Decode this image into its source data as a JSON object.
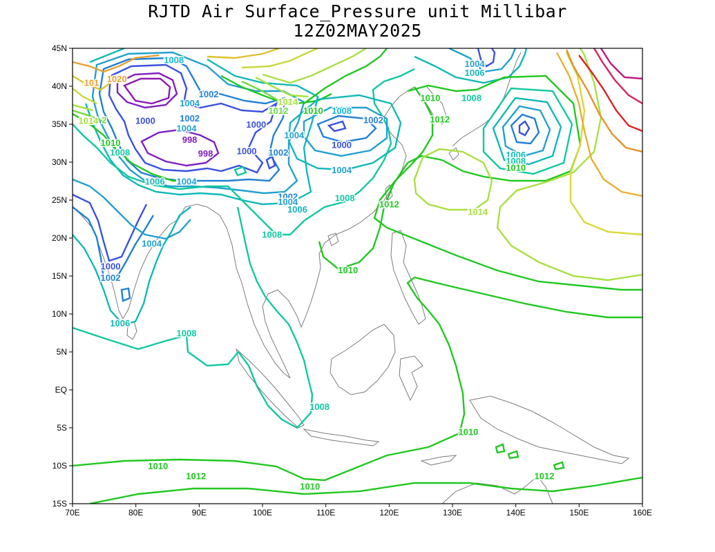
{
  "title": {
    "line1": "RJTD Air Surface_Pressure unit Millibar",
    "line2": "12Z02MAY2025"
  },
  "axes": {
    "lat_ticks": [
      "45N",
      "40N",
      "35N",
      "30N",
      "25N",
      "20N",
      "15N",
      "10N",
      "5N",
      "EQ",
      "5S",
      "10S",
      "15S"
    ],
    "lon_ticks": [
      "70E",
      "80E",
      "90E",
      "100E",
      "110E",
      "120E",
      "130E",
      "140E",
      "150E",
      "160E"
    ]
  },
  "map_data": {
    "type": "contour-map",
    "variable": "Air Surface Pressure",
    "unit": "Millibar",
    "lon_range": [
      70,
      160
    ],
    "lat_range": [
      -15,
      45
    ],
    "contour_labels": [
      {
        "value": "1008",
        "lon": 86.0,
        "lat": 43.5,
        "color": "#10b8d8"
      },
      {
        "value": "1020",
        "lon": 77.0,
        "lat": 41.0,
        "color": "#e8a030"
      },
      {
        "value": "101",
        "lon": 73.0,
        "lat": 40.5,
        "color": "#e8a030"
      },
      {
        "value": "1014",
        "lon": 72.5,
        "lat": 35.5,
        "color": "#a8e040"
      },
      {
        "value": "2",
        "lon": 75.0,
        "lat": 35.6,
        "color": "#70d840"
      },
      {
        "value": "1010",
        "lon": 76.0,
        "lat": 32.6,
        "color": "#20c820"
      },
      {
        "value": "1008",
        "lon": 77.5,
        "lat": 31.3,
        "color": "#10c8a0"
      },
      {
        "value": "1000",
        "lon": 81.5,
        "lat": 35.5,
        "color": "#3850e0"
      },
      {
        "value": "1004",
        "lon": 88.5,
        "lat": 37.8,
        "color": "#20a0d0"
      },
      {
        "value": "1002",
        "lon": 91.5,
        "lat": 39.0,
        "color": "#2080d8"
      },
      {
        "value": "1002",
        "lon": 88.5,
        "lat": 35.8,
        "color": "#2080d8"
      },
      {
        "value": "1004",
        "lon": 88.0,
        "lat": 34.5,
        "color": "#20a0d0"
      },
      {
        "value": "1000",
        "lon": 99.0,
        "lat": 35.0,
        "color": "#3850e0"
      },
      {
        "value": "998",
        "lon": 88.5,
        "lat": 33.0,
        "color": "#8020c0"
      },
      {
        "value": "998",
        "lon": 91.0,
        "lat": 31.2,
        "color": "#8020c0"
      },
      {
        "value": "1000",
        "lon": 97.5,
        "lat": 31.5,
        "color": "#3850e0"
      },
      {
        "value": "1002",
        "lon": 102.5,
        "lat": 31.3,
        "color": "#2080d8"
      },
      {
        "value": "1004",
        "lon": 105.0,
        "lat": 33.6,
        "color": "#20a0d0"
      },
      {
        "value": "1012",
        "lon": 102.5,
        "lat": 36.8,
        "color": "#70d840"
      },
      {
        "value": "1014",
        "lon": 104.0,
        "lat": 38.0,
        "color": "#a8e040"
      },
      {
        "value": "1010",
        "lon": 108.0,
        "lat": 36.8,
        "color": "#20c820"
      },
      {
        "value": "1008",
        "lon": 112.5,
        "lat": 36.8,
        "color": "#10b8d8"
      },
      {
        "value": "1002",
        "lon": 117.5,
        "lat": 35.6,
        "color": "#2080d8"
      },
      {
        "value": "1000",
        "lon": 112.5,
        "lat": 32.3,
        "color": "#3850e0"
      },
      {
        "value": "1004",
        "lon": 112.5,
        "lat": 29.0,
        "color": "#20a0d0"
      },
      {
        "value": "1006",
        "lon": 83.0,
        "lat": 27.5,
        "color": "#10b8b8"
      },
      {
        "value": "1004",
        "lon": 88.0,
        "lat": 27.5,
        "color": "#20a0d0"
      },
      {
        "value": "1002",
        "lon": 104.0,
        "lat": 25.5,
        "color": "#2080d8"
      },
      {
        "value": "1004",
        "lon": 104.0,
        "lat": 24.8,
        "color": "#20a0d0"
      },
      {
        "value": "1006",
        "lon": 105.5,
        "lat": 23.8,
        "color": "#10b8b8"
      },
      {
        "value": "1008",
        "lon": 113.0,
        "lat": 25.3,
        "color": "#10c8a0"
      },
      {
        "value": "1012",
        "lon": 120.0,
        "lat": 24.5,
        "color": "#20c820"
      },
      {
        "value": "1008",
        "lon": 101.5,
        "lat": 20.5,
        "color": "#10c8a0"
      },
      {
        "value": "1010",
        "lon": 113.5,
        "lat": 15.8,
        "color": "#20c820"
      },
      {
        "value": "1004",
        "lon": 82.5,
        "lat": 19.3,
        "color": "#20a0d0"
      },
      {
        "value": "1000",
        "lon": 76.0,
        "lat": 16.3,
        "color": "#3850e0"
      },
      {
        "value": "1002",
        "lon": 76.0,
        "lat": 14.8,
        "color": "#2080d8"
      },
      {
        "value": "1006",
        "lon": 77.5,
        "lat": 8.8,
        "color": "#10b8b8"
      },
      {
        "value": "1008",
        "lon": 88.0,
        "lat": 7.5,
        "color": "#10c8a0"
      },
      {
        "value": "1008",
        "lon": 109.0,
        "lat": -2.2,
        "color": "#10c8a0"
      },
      {
        "value": "1010",
        "lon": 132.5,
        "lat": -5.5,
        "color": "#20c820"
      },
      {
        "value": "1010",
        "lon": 83.5,
        "lat": -10.0,
        "color": "#20c820"
      },
      {
        "value": "1012",
        "lon": 89.5,
        "lat": -11.3,
        "color": "#20c820"
      },
      {
        "value": "1010",
        "lon": 107.5,
        "lat": -12.7,
        "color": "#20c820"
      },
      {
        "value": "1012",
        "lon": 144.5,
        "lat": -11.3,
        "color": "#20c820"
      },
      {
        "value": "1004",
        "lon": 133.5,
        "lat": 43.0,
        "color": "#20a0d0"
      },
      {
        "value": "1006",
        "lon": 133.5,
        "lat": 41.8,
        "color": "#10b8b8"
      },
      {
        "value": "1010",
        "lon": 126.5,
        "lat": 38.5,
        "color": "#20c820"
      },
      {
        "value": "1008",
        "lon": 133.0,
        "lat": 38.5,
        "color": "#10c8a0"
      },
      {
        "value": "1012",
        "lon": 128.0,
        "lat": 35.7,
        "color": "#20c820"
      },
      {
        "value": "1014",
        "lon": 134.0,
        "lat": 23.5,
        "color": "#a8e040"
      },
      {
        "value": "1006",
        "lon": 140.0,
        "lat": 31.0,
        "color": "#10b8b8"
      },
      {
        "value": "1008",
        "lon": 140.0,
        "lat": 30.2,
        "color": "#10c8a0"
      },
      {
        "value": "1010",
        "lon": 140.0,
        "lat": 29.3,
        "color": "#20c820"
      }
    ]
  }
}
